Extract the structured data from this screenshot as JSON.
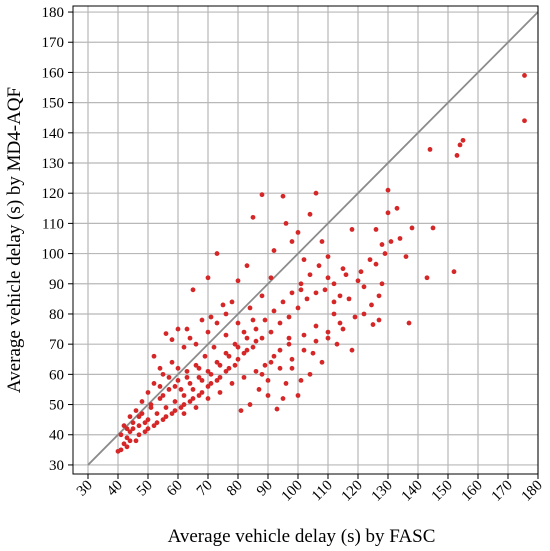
{
  "chart_data": {
    "type": "scatter",
    "xlabel": "Average vehicle delay (s) by FASC",
    "ylabel": "Average vehicle delay (s) by MD4-AQF",
    "xlim": [
      25,
      180
    ],
    "ylim": [
      27,
      182
    ],
    "x_ticks": [
      30,
      40,
      50,
      60,
      70,
      80,
      90,
      100,
      110,
      120,
      130,
      140,
      150,
      160,
      170,
      180
    ],
    "y_ticks": [
      30,
      40,
      50,
      60,
      70,
      80,
      90,
      100,
      110,
      120,
      130,
      140,
      150,
      160,
      170,
      180
    ],
    "grid": true,
    "colors": {
      "points": "#d62728",
      "reference_line": "#8c8c8c",
      "grid": "#b8b8b8",
      "axes": "#000000"
    },
    "reference_line": {
      "x": [
        30,
        180
      ],
      "y": [
        30,
        180
      ]
    },
    "series": [
      {
        "points": [
          [
            175.5,
            159
          ],
          [
            175.5,
            144
          ],
          [
            155,
            137.5
          ],
          [
            154,
            136
          ],
          [
            153,
            132.5
          ],
          [
            144,
            134.5
          ],
          [
            152,
            94
          ],
          [
            145,
            108.5
          ],
          [
            143,
            92
          ],
          [
            137,
            77
          ],
          [
            138,
            108.5
          ],
          [
            136,
            99
          ],
          [
            130,
            121
          ],
          [
            130,
            113.5
          ],
          [
            131,
            104
          ],
          [
            129,
            100
          ],
          [
            128,
            90
          ],
          [
            127,
            86
          ],
          [
            124.5,
            83
          ],
          [
            125,
            76.5
          ],
          [
            126,
            96.5
          ],
          [
            122,
            89
          ],
          [
            120,
            91
          ],
          [
            118,
            108
          ],
          [
            116,
            93
          ],
          [
            114,
            86
          ],
          [
            112,
            80
          ],
          [
            110,
            92
          ],
          [
            108,
            104
          ],
          [
            106,
            120
          ],
          [
            104,
            113
          ],
          [
            102,
            98
          ],
          [
            101,
            88
          ],
          [
            100,
            107
          ],
          [
            98,
            104
          ],
          [
            96,
            110
          ],
          [
            95,
            119
          ],
          [
            92,
            101
          ],
          [
            91,
            92
          ],
          [
            88,
            119.5
          ],
          [
            85,
            112
          ],
          [
            83,
            96
          ],
          [
            80,
            91
          ],
          [
            78,
            84
          ],
          [
            75,
            83
          ],
          [
            73,
            100
          ],
          [
            71,
            79
          ],
          [
            70,
            92
          ],
          [
            68,
            78
          ],
          [
            65,
            88
          ],
          [
            63,
            75
          ],
          [
            60,
            75
          ],
          [
            58,
            71.5
          ],
          [
            56,
            73.5
          ],
          [
            52,
            66
          ],
          [
            54,
            62
          ],
          [
            100,
            53
          ],
          [
            95,
            52
          ],
          [
            90,
            53
          ],
          [
            113,
            70
          ],
          [
            118,
            68
          ],
          [
            105,
            67
          ],
          [
            98,
            62
          ],
          [
            110,
            72
          ],
          [
            122,
            80
          ],
          [
            127,
            78
          ],
          [
            133,
            115
          ],
          [
            134,
            105
          ],
          [
            101,
            58
          ],
          [
            93,
            48.5
          ],
          [
            87,
            55
          ],
          [
            84,
            50
          ],
          [
            81,
            48
          ],
          [
            96,
            57
          ],
          [
            104,
            60
          ],
          [
            108,
            64
          ],
          [
            115,
            75
          ],
          [
            119,
            79
          ],
          [
            112,
            84
          ],
          [
            106,
            76
          ],
          [
            102,
            73
          ],
          [
            97,
            70
          ],
          [
            92,
            66
          ],
          [
            89,
            63
          ],
          [
            86,
            71
          ],
          [
            83,
            68
          ],
          [
            80,
            65
          ],
          [
            77,
            62
          ],
          [
            74,
            59
          ],
          [
            71,
            57
          ],
          [
            68,
            54
          ],
          [
            65,
            52
          ],
          [
            62,
            50
          ],
          [
            59,
            48
          ],
          [
            56,
            46
          ],
          [
            53,
            44
          ],
          [
            50,
            42
          ],
          [
            47,
            40
          ],
          [
            44,
            38
          ],
          [
            42,
            37
          ],
          [
            41,
            35
          ],
          [
            40,
            34.5
          ],
          [
            43,
            36
          ],
          [
            46,
            38
          ],
          [
            49,
            41
          ],
          [
            52,
            43
          ],
          [
            55,
            45
          ],
          [
            58,
            47
          ],
          [
            61,
            49
          ],
          [
            64,
            51
          ],
          [
            67,
            53
          ],
          [
            70,
            56
          ],
          [
            73,
            58
          ],
          [
            76,
            61
          ],
          [
            79,
            63
          ],
          [
            82,
            67
          ],
          [
            85,
            69
          ],
          [
            88,
            72
          ],
          [
            91,
            74
          ],
          [
            94,
            77
          ],
          [
            97,
            79
          ],
          [
            100,
            82
          ],
          [
            103,
            85
          ],
          [
            106,
            87
          ],
          [
            109,
            88
          ],
          [
            112,
            90
          ],
          [
            115,
            95
          ],
          [
            117,
            85
          ],
          [
            121,
            94
          ],
          [
            124,
            98
          ],
          [
            128,
            103
          ],
          [
            126,
            108
          ],
          [
            88,
            86
          ],
          [
            84,
            82
          ],
          [
            80,
            77
          ],
          [
            76,
            73
          ],
          [
            72,
            69
          ],
          [
            69,
            66
          ],
          [
            66,
            63
          ],
          [
            63,
            61
          ],
          [
            60,
            58
          ],
          [
            57,
            55
          ],
          [
            54,
            52
          ],
          [
            51,
            49
          ],
          [
            48,
            47
          ],
          [
            45,
            44
          ],
          [
            43,
            42
          ],
          [
            41,
            40
          ],
          [
            44,
            41
          ],
          [
            47,
            43
          ],
          [
            50,
            45
          ],
          [
            53,
            47
          ],
          [
            56,
            49
          ],
          [
            59,
            51
          ],
          [
            62,
            53
          ],
          [
            65,
            55
          ],
          [
            68,
            58
          ],
          [
            71,
            60
          ],
          [
            74,
            63
          ],
          [
            77,
            66
          ],
          [
            80,
            69
          ],
          [
            83,
            72
          ],
          [
            86,
            75
          ],
          [
            89,
            78
          ],
          [
            92,
            81
          ],
          [
            95,
            84
          ],
          [
            98,
            87
          ],
          [
            101,
            90
          ],
          [
            104,
            93
          ],
          [
            107,
            96
          ],
          [
            110,
            99
          ],
          [
            64,
            72
          ],
          [
            62,
            69
          ],
          [
            58,
            64
          ],
          [
            55,
            60
          ],
          [
            52,
            57
          ],
          [
            50,
            54
          ],
          [
            48,
            51
          ],
          [
            46,
            48
          ],
          [
            44,
            46
          ],
          [
            42,
            43
          ],
          [
            66,
            70
          ],
          [
            70,
            74
          ],
          [
            73,
            77
          ],
          [
            76,
            80
          ],
          [
            79,
            70
          ],
          [
            82,
            74
          ],
          [
            85,
            78
          ],
          [
            88,
            60
          ],
          [
            91,
            64
          ],
          [
            94,
            68
          ],
          [
            97,
            72
          ],
          [
            60,
            62
          ],
          [
            57,
            59
          ],
          [
            54,
            56
          ],
          [
            61,
            55
          ],
          [
            64,
            57
          ],
          [
            67,
            59
          ],
          [
            70,
            61
          ],
          [
            73,
            64
          ],
          [
            76,
            67
          ],
          [
            67,
            62
          ],
          [
            63,
            59
          ],
          [
            59,
            56
          ],
          [
            55,
            53
          ],
          [
            51,
            50
          ],
          [
            47,
            46
          ],
          [
            43,
            39
          ],
          [
            49,
            44
          ],
          [
            45,
            42
          ],
          [
            62,
            47
          ],
          [
            66,
            49
          ],
          [
            70,
            52
          ],
          [
            74,
            54
          ],
          [
            78,
            57
          ],
          [
            82,
            59
          ],
          [
            86,
            61
          ],
          [
            90,
            58
          ],
          [
            94,
            62
          ],
          [
            98,
            65
          ],
          [
            102,
            68
          ],
          [
            106,
            71
          ],
          [
            110,
            74
          ],
          [
            114,
            77
          ]
        ]
      }
    ]
  }
}
